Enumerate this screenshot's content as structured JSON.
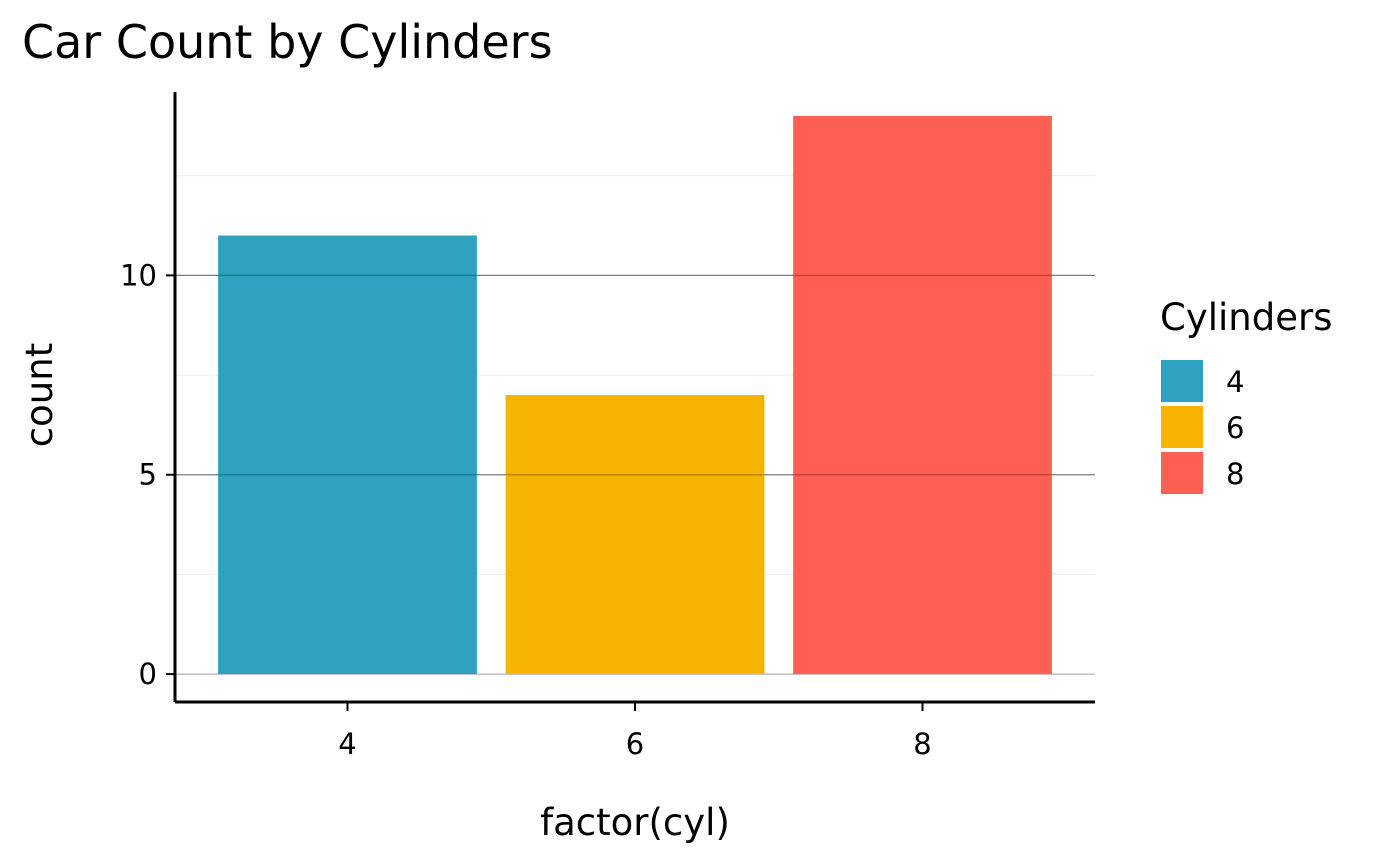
{
  "chart_data": {
    "type": "bar",
    "title": "Car Count by Cylinders",
    "xlabel": "factor(cyl)",
    "ylabel": "count",
    "categories": [
      "4",
      "6",
      "8"
    ],
    "values": [
      11,
      7,
      14
    ],
    "colors": [
      "#2EA0C0",
      "#F6B400",
      "#FE5F55"
    ],
    "ylim": [
      -0.7,
      14.6
    ],
    "yticks": [
      0,
      5,
      10
    ],
    "grid": true,
    "legend": {
      "title": "Cylinders",
      "position": "right",
      "items": [
        {
          "label": "4",
          "color": "#2EA0C0"
        },
        {
          "label": "6",
          "color": "#F6B400"
        },
        {
          "label": "8",
          "color": "#FE5F55"
        }
      ]
    }
  }
}
